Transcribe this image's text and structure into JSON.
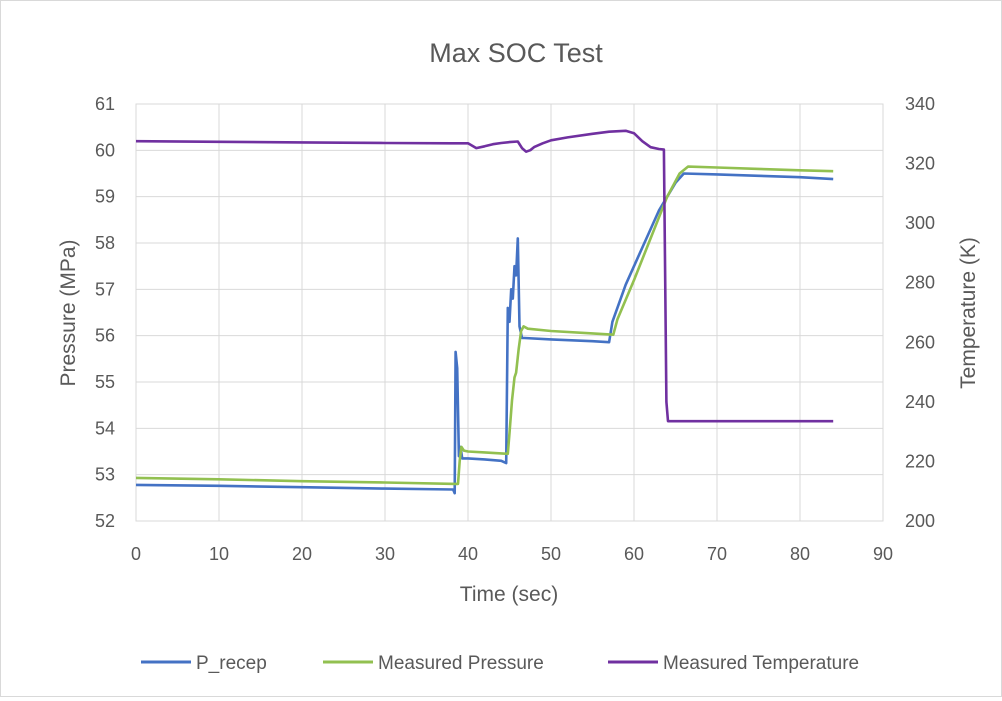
{
  "chart_data": {
    "type": "line",
    "title": "Max SOC Test",
    "xlabel": "Time (sec)",
    "ylabel": "Pressure (MPa)",
    "y2label": "Temperature (K)",
    "xlim": [
      0,
      90
    ],
    "ylim": [
      52,
      61
    ],
    "y2lim": [
      200,
      340
    ],
    "xticks": [
      "0",
      "10",
      "20",
      "30",
      "40",
      "50",
      "60",
      "70",
      "80",
      "90"
    ],
    "yticks": [
      "52",
      "53",
      "54",
      "55",
      "56",
      "57",
      "58",
      "59",
      "60",
      "61"
    ],
    "y2ticks": [
      "200",
      "220",
      "240",
      "260",
      "280",
      "300",
      "320",
      "340"
    ],
    "grid": true,
    "legend_position": "bottom",
    "series": [
      {
        "name": "P_recep",
        "axis": "left",
        "color": "#4472c4",
        "x": [
          0,
          10,
          20,
          30,
          38.2,
          38.4,
          38.5,
          38.7,
          38.9,
          39.1,
          39.3,
          39.6,
          40,
          42,
          44,
          44.6,
          44.8,
          45,
          45.2,
          45.4,
          45.6,
          45.8,
          46,
          46.2,
          46.5,
          46.8,
          50,
          55,
          57,
          57.4,
          59,
          61,
          63,
          65,
          66,
          70,
          75,
          80,
          84
        ],
        "y": [
          52.78,
          52.76,
          52.73,
          52.7,
          52.68,
          52.6,
          55.65,
          55.3,
          53.4,
          53.6,
          53.35,
          53.35,
          53.35,
          53.33,
          53.3,
          53.25,
          56.6,
          56.3,
          57.0,
          56.8,
          57.5,
          57.3,
          58.1,
          56.2,
          55.95,
          55.95,
          55.92,
          55.88,
          55.86,
          56.3,
          57.1,
          57.9,
          58.7,
          59.3,
          59.5,
          59.48,
          59.45,
          59.42,
          59.38
        ]
      },
      {
        "name": "Measured Pressure",
        "axis": "left",
        "color": "#92c050",
        "x": [
          0,
          10,
          20,
          30,
          38.5,
          38.8,
          39,
          39.2,
          39.5,
          40,
          42,
          44,
          44.8,
          45,
          45.3,
          45.6,
          45.8,
          46.1,
          46.4,
          46.7,
          47.2,
          50,
          55,
          57.5,
          58,
          60,
          62,
          64,
          65.5,
          66.5,
          70,
          75,
          80,
          84
        ],
        "y": [
          52.93,
          52.9,
          52.86,
          52.83,
          52.8,
          52.8,
          53.3,
          53.6,
          53.52,
          53.5,
          53.48,
          53.46,
          53.45,
          53.9,
          54.6,
          55.1,
          55.2,
          55.7,
          56.1,
          56.2,
          56.15,
          56.1,
          56.05,
          56.02,
          56.35,
          57.2,
          58.1,
          59.0,
          59.5,
          59.65,
          59.63,
          59.6,
          59.57,
          59.55
        ]
      },
      {
        "name": "Measured Temperature",
        "axis": "right",
        "color": "#7030a0",
        "x": [
          0,
          10,
          20,
          30,
          38,
          40,
          41,
          42,
          43,
          44,
          45,
          46,
          46.5,
          47,
          47.5,
          48,
          49,
          50,
          52,
          55,
          57,
          59,
          60,
          61,
          62,
          63,
          63.6,
          63.9,
          64.1,
          66,
          70,
          75,
          80,
          84
        ],
        "y": [
          327.5,
          327.3,
          327.1,
          326.9,
          326.8,
          326.8,
          325.2,
          325.8,
          326.5,
          326.9,
          327.2,
          327.4,
          325.2,
          324.0,
          324.5,
          325.6,
          326.8,
          327.8,
          328.8,
          330.0,
          330.7,
          331.0,
          330.2,
          327.5,
          325.5,
          324.9,
          324.7,
          240,
          233.5,
          233.5,
          233.5,
          233.5,
          233.5,
          233.5
        ]
      }
    ]
  }
}
